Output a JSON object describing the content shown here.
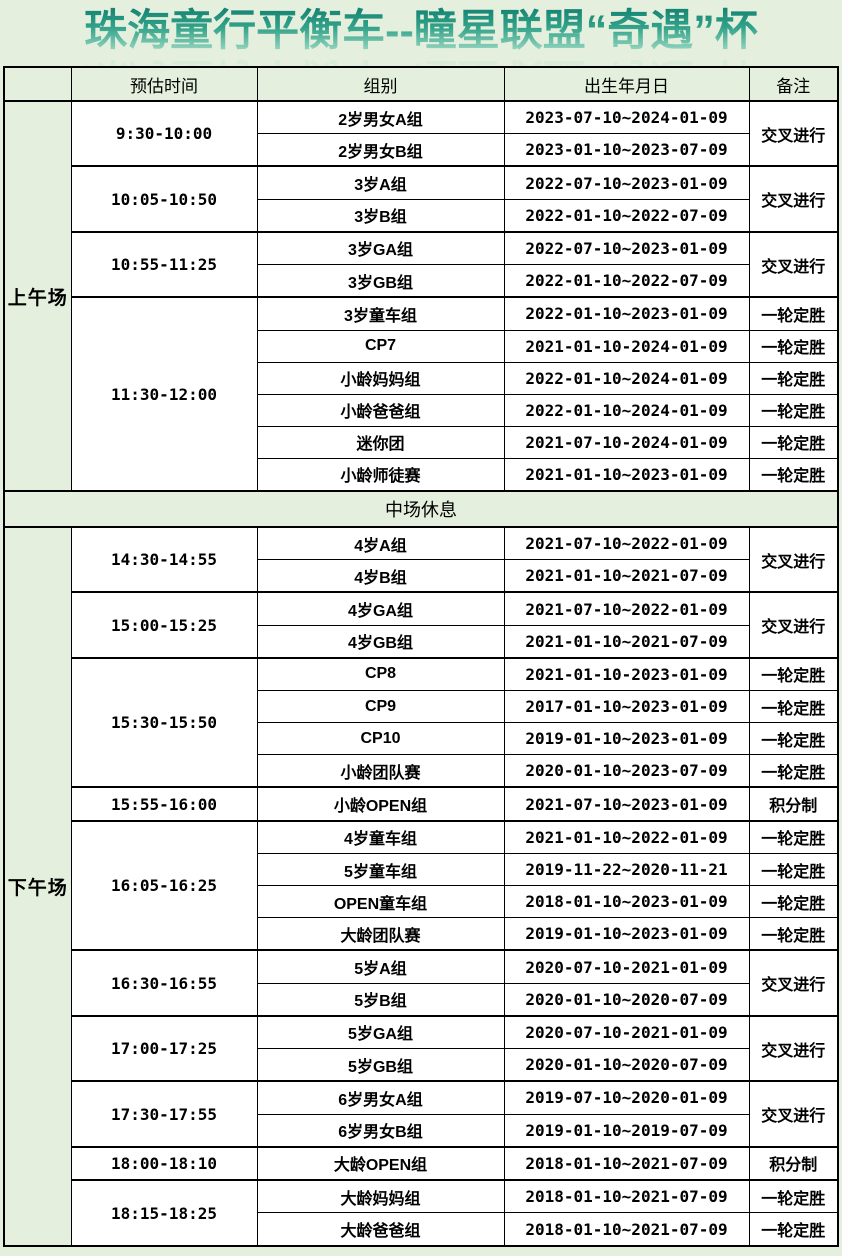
{
  "title": "珠海童行平衡车--瞳星联盟“奇遇”杯",
  "colors": {
    "page_background": "#e4f0dd",
    "cell_green": "#e4f0dd",
    "title_gradient_top": "#0e7e6e",
    "title_gradient_bottom": "#b2e4cf",
    "border": "#000000"
  },
  "table": {
    "headers": [
      "预估时间",
      "组别",
      "出生年月日",
      "备注"
    ],
    "break_label": "中场休息",
    "sessions": [
      {
        "label": "上午场",
        "blocks": [
          {
            "time": "9:30-10:00",
            "merged_note": "交叉进行",
            "rows": [
              {
                "group": "2岁男女A组",
                "birth": "2023-07-10~2024-01-09"
              },
              {
                "group": "2岁男女B组",
                "birth": "2023-01-10~2023-07-09"
              }
            ]
          },
          {
            "time": "10:05-10:50",
            "merged_note": "交叉进行",
            "rows": [
              {
                "group": "3岁A组",
                "birth": "2022-07-10~2023-01-09"
              },
              {
                "group": "3岁B组",
                "birth": "2022-01-10~2022-07-09"
              }
            ]
          },
          {
            "time": "10:55-11:25",
            "merged_note": "交叉进行",
            "rows": [
              {
                "group": "3岁GA组",
                "birth": "2022-07-10~2023-01-09"
              },
              {
                "group": "3岁GB组",
                "birth": "2022-01-10~2022-07-09"
              }
            ]
          },
          {
            "time": "11:30-12:00",
            "rows": [
              {
                "group": "3岁童车组",
                "birth": "2022-01-10~2023-01-09",
                "note": "一轮定胜"
              },
              {
                "group": "CP7",
                "birth": "2021-01-10-2024-01-09",
                "note": "一轮定胜"
              },
              {
                "group": "小龄妈妈组",
                "birth": "2022-01-10~2024-01-09",
                "note": "一轮定胜"
              },
              {
                "group": "小龄爸爸组",
                "birth": "2022-01-10~2024-01-09",
                "note": "一轮定胜"
              },
              {
                "group": "迷你团",
                "birth": "2021-07-10-2024-01-09",
                "note": "一轮定胜"
              },
              {
                "group": "小龄师徒赛",
                "birth": "2021-01-10~2023-01-09",
                "note": "一轮定胜"
              }
            ]
          }
        ]
      },
      {
        "label": "下午场",
        "blocks": [
          {
            "time": "14:30-14:55",
            "merged_note": "交叉进行",
            "rows": [
              {
                "group": "4岁A组",
                "birth": "2021-07-10~2022-01-09"
              },
              {
                "group": "4岁B组",
                "birth": "2021-01-10~2021-07-09"
              }
            ]
          },
          {
            "time": "15:00-15:25",
            "merged_note": "交叉进行",
            "rows": [
              {
                "group": "4岁GA组",
                "birth": "2021-07-10~2022-01-09"
              },
              {
                "group": "4岁GB组",
                "birth": "2021-01-10~2021-07-09"
              }
            ]
          },
          {
            "time": "15:30-15:50",
            "rows": [
              {
                "group": "CP8",
                "birth": "2021-01-10-2023-01-09",
                "note": "一轮定胜"
              },
              {
                "group": "CP9",
                "birth": "2017-01-10~2023-01-09",
                "note": "一轮定胜"
              },
              {
                "group": "CP10",
                "birth": "2019-01-10~2023-01-09",
                "note": "一轮定胜"
              },
              {
                "group": "小龄团队赛",
                "birth": "2020-01-10~2023-07-09",
                "note": "一轮定胜"
              }
            ]
          },
          {
            "time": "15:55-16:00",
            "rows": [
              {
                "group": "小龄OPEN组",
                "birth": "2021-07-10~2023-01-09",
                "note": "积分制"
              }
            ]
          },
          {
            "time": "16:05-16:25",
            "rows": [
              {
                "group": "4岁童车组",
                "birth": "2021-01-10~2022-01-09",
                "note": "一轮定胜"
              },
              {
                "group": "5岁童车组",
                "birth": "2019-11-22~2020-11-21",
                "note": "一轮定胜"
              },
              {
                "group": "OPEN童车组",
                "birth": "2018-01-10~2023-01-09",
                "note": "一轮定胜"
              },
              {
                "group": "大龄团队赛",
                "birth": "2019-01-10~2023-01-09",
                "note": "一轮定胜"
              }
            ]
          },
          {
            "time": "16:30-16:55",
            "merged_note": "交叉进行",
            "rows": [
              {
                "group": "5岁A组",
                "birth": "2020-07-10-2021-01-09"
              },
              {
                "group": "5岁B组",
                "birth": "2020-01-10~2020-07-09"
              }
            ]
          },
          {
            "time": "17:00-17:25",
            "merged_note": "交叉进行",
            "rows": [
              {
                "group": "5岁GA组",
                "birth": "2020-07-10-2021-01-09"
              },
              {
                "group": "5岁GB组",
                "birth": "2020-01-10~2020-07-09"
              }
            ]
          },
          {
            "time": "17:30-17:55",
            "merged_note": "交叉进行",
            "rows": [
              {
                "group": "6岁男女A组",
                "birth": "2019-07-10~2020-01-09"
              },
              {
                "group": "6岁男女B组",
                "birth": "2019-01-10~2019-07-09"
              }
            ]
          },
          {
            "time": "18:00-18:10",
            "rows": [
              {
                "group": "大龄OPEN组",
                "birth": "2018-01-10~2021-07-09",
                "note": "积分制"
              }
            ]
          },
          {
            "time": "18:15-18:25",
            "rows": [
              {
                "group": "大龄妈妈组",
                "birth": "2018-01-10~2021-07-09",
                "note": "一轮定胜"
              },
              {
                "group": "大龄爸爸组",
                "birth": "2018-01-10~2021-07-09",
                "note": "一轮定胜"
              }
            ]
          }
        ]
      }
    ]
  }
}
